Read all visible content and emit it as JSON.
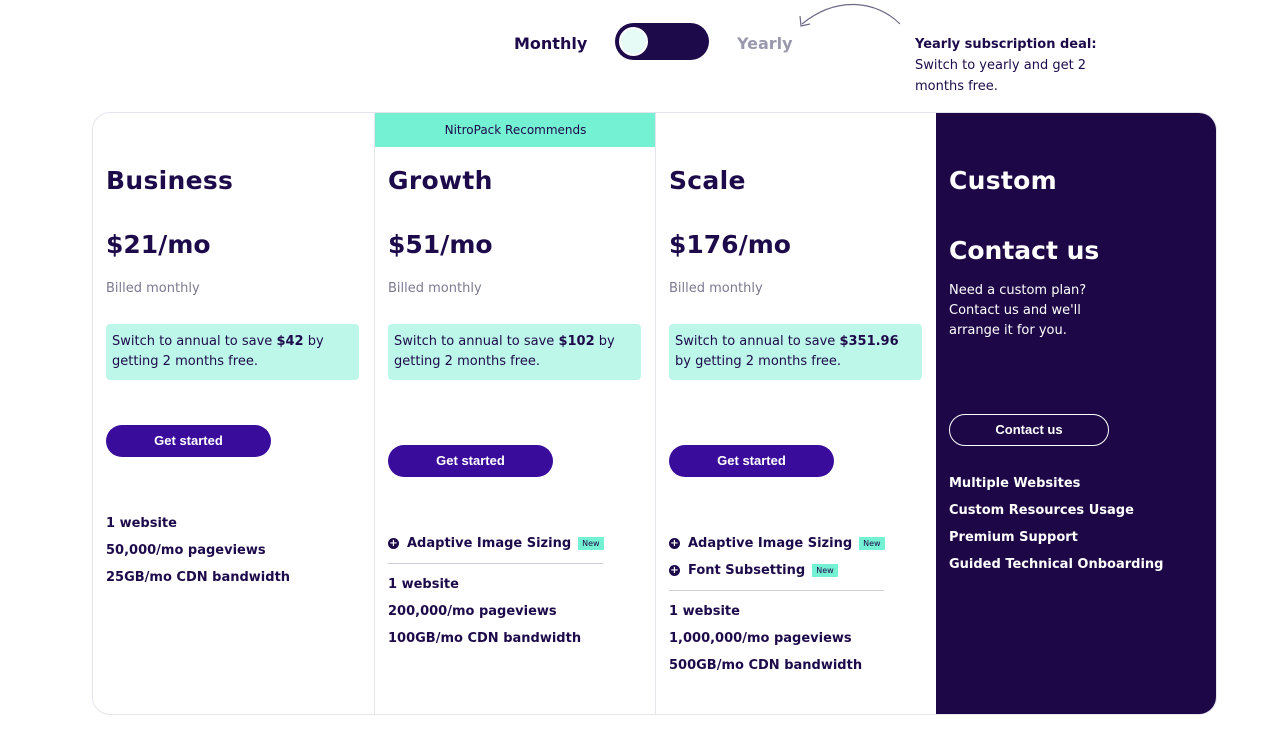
{
  "billing": {
    "monthly_label": "Monthly",
    "yearly_label": "Yearly",
    "deal_title": "Yearly subscription deal:",
    "deal_text": "Switch to yearly and get 2 months free."
  },
  "plans": [
    {
      "name": "Business",
      "price": "$21/mo",
      "billed": "Billed monthly",
      "save_prefix": "Switch to annual to save ",
      "save_amount": "$42",
      "save_suffix": " by getting 2 months free.",
      "cta": "Get started",
      "features": [
        "1 website",
        "50,000/mo pageviews",
        "25GB/mo CDN bandwidth"
      ]
    },
    {
      "badge": "NitroPack Recommends",
      "name": "Growth",
      "price": "$51/mo",
      "billed": "Billed monthly",
      "save_prefix": "Switch to annual to save ",
      "save_amount": "$102",
      "save_suffix": " by getting 2 months free.",
      "cta": "Get started",
      "new_features": [
        "Adaptive Image Sizing"
      ],
      "new_label": "New",
      "features": [
        "1 website",
        "200,000/mo pageviews",
        "100GB/mo CDN bandwidth"
      ]
    },
    {
      "name": "Scale",
      "price": "$176/mo",
      "billed": "Billed monthly",
      "save_prefix": "Switch to annual to save ",
      "save_amount": "$351.96",
      "save_suffix": " by getting 2 months free.",
      "cta": "Get started",
      "new_features": [
        "Adaptive Image Sizing",
        "Font Subsetting"
      ],
      "new_label": "New",
      "features": [
        "1 website",
        "1,000,000/mo pageviews",
        "500GB/mo CDN bandwidth"
      ]
    },
    {
      "name": "Custom",
      "contact_title": "Contact us",
      "description": "Need a custom plan? Contact us and we'll arrange it for you.",
      "cta": "Contact us",
      "features": [
        "Multiple Websites",
        "Custom Resources Usage",
        "Premium Support",
        "Guided Technical Onboarding"
      ]
    }
  ],
  "colors": {
    "navy": "#1d0746",
    "accent": "#3a0c9c",
    "mint": "#74f0d2",
    "mint_light": "#bdf7ea"
  }
}
